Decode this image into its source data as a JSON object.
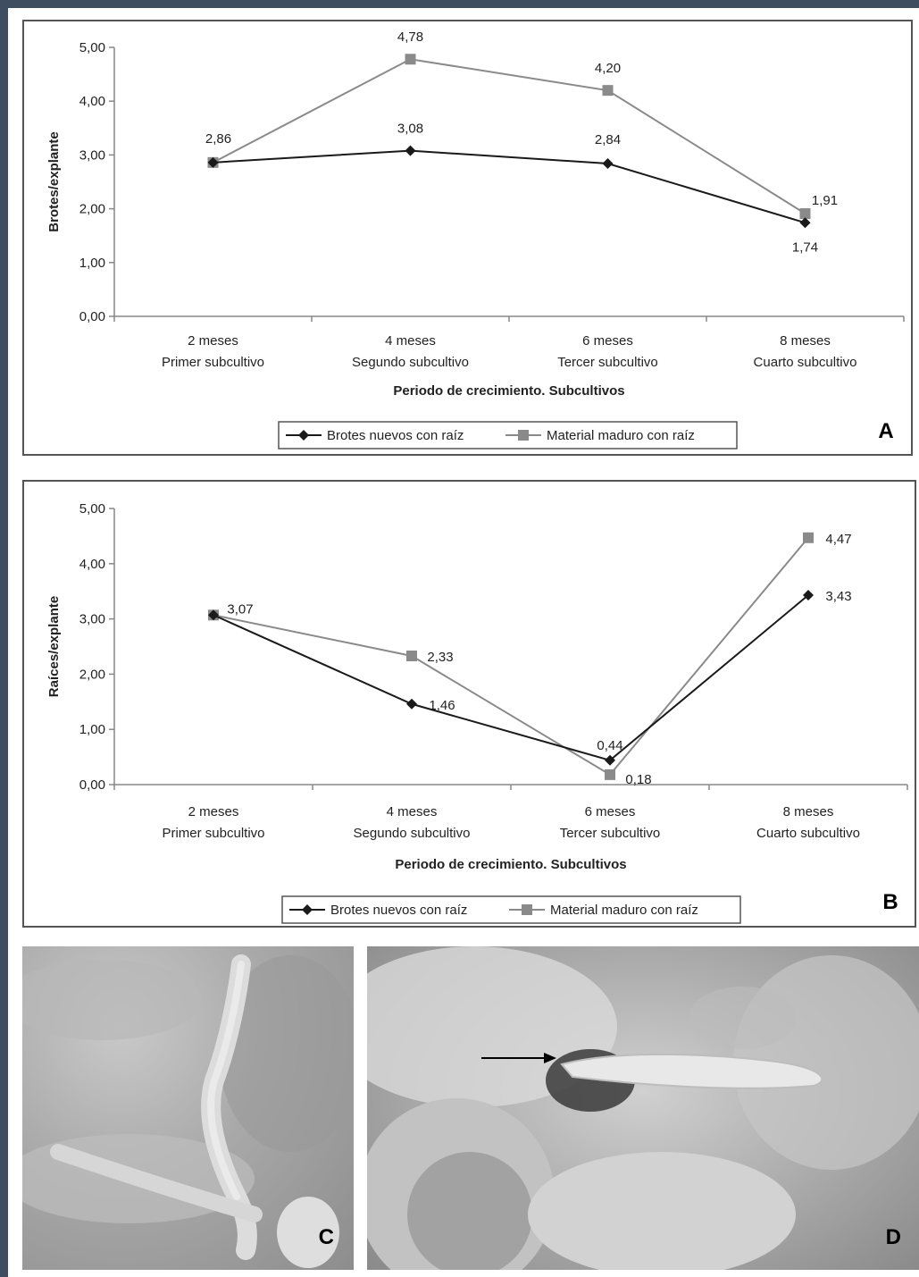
{
  "chart_data": [
    {
      "type": "line",
      "panel_label": "A",
      "ylabel": "Brotes/explante",
      "xlabel": "Periodo de crecimiento. Subcultivos",
      "ylim": [
        0,
        5
      ],
      "y_ticks": [
        "0,00",
        "1,00",
        "2,00",
        "3,00",
        "4,00",
        "5,00"
      ],
      "categories": [
        [
          "2 meses",
          "Primer subcultivo"
        ],
        [
          "4 meses",
          "Segundo subcultivo"
        ],
        [
          "6 meses",
          "Tercer subcultivo"
        ],
        [
          "8 meses",
          "Cuarto subcultivo"
        ]
      ],
      "series": [
        {
          "name": "Brotes nuevos con raíz",
          "values": [
            2.86,
            3.08,
            2.84,
            1.74
          ],
          "labels": [
            "",
            "3,08",
            "2,84",
            "1,74"
          ],
          "color": "#1a1a1a",
          "marker": "diamond"
        },
        {
          "name": "Material maduro con raíz",
          "values": [
            2.86,
            4.78,
            4.2,
            1.91
          ],
          "labels": [
            "2,86",
            "4,78",
            "4,20",
            "1,91"
          ],
          "color": "#8a8a8a",
          "marker": "square"
        }
      ],
      "legend": "bottom",
      "grid": false
    },
    {
      "type": "line",
      "panel_label": "B",
      "ylabel": "Raíces/explante",
      "xlabel": "Periodo de crecimiento. Subcultivos",
      "ylim": [
        0,
        5
      ],
      "y_ticks": [
        "0,00",
        "1,00",
        "2,00",
        "3,00",
        "4,00",
        "5,00"
      ],
      "categories": [
        [
          "2 meses",
          "Primer subcultivo"
        ],
        [
          "4 meses",
          "Segundo subcultivo"
        ],
        [
          "6 meses",
          "Tercer subcultivo"
        ],
        [
          "8 meses",
          "Cuarto subcultivo"
        ]
      ],
      "series": [
        {
          "name": "Brotes nuevos con raíz",
          "values": [
            3.07,
            1.46,
            0.44,
            3.43
          ],
          "labels": [
            "",
            "1,46",
            "0,44",
            "3,43"
          ],
          "color": "#1a1a1a",
          "marker": "diamond"
        },
        {
          "name": "Material maduro con raíz",
          "values": [
            3.07,
            2.33,
            0.18,
            4.47
          ],
          "labels": [
            "3,07",
            "2,33",
            "0,18",
            "4,47"
          ],
          "color": "#8a8a8a",
          "marker": "square"
        }
      ],
      "legend": "bottom",
      "grid": false
    }
  ],
  "photos": [
    {
      "label": "C"
    },
    {
      "label": "D"
    }
  ]
}
